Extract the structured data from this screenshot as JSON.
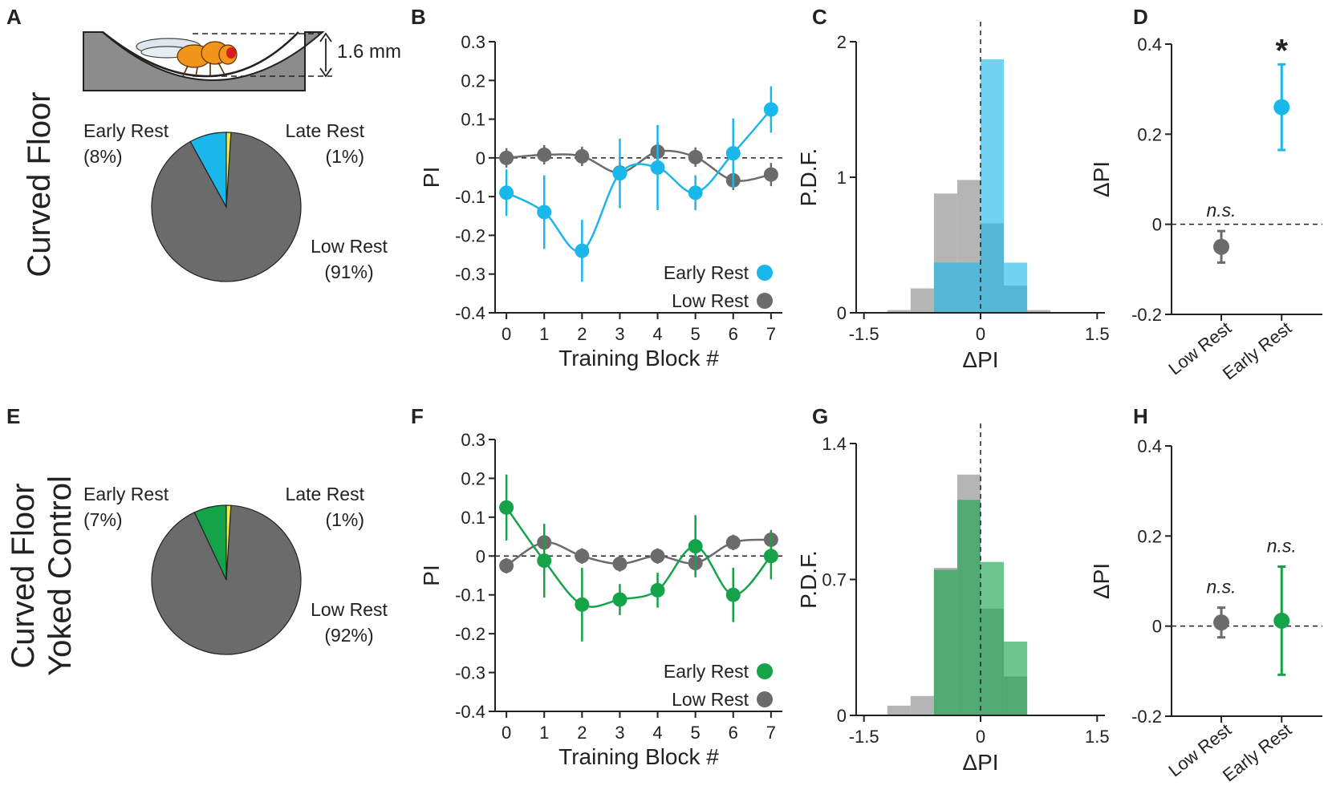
{
  "colors": {
    "early_curved": "#1ab7ea",
    "early_yoked": "#15a34a",
    "low": "#6b6b6b",
    "late": "#f2ec3a",
    "gray_hist": "#b5b5b5",
    "fly_body": "#f2951b"
  },
  "row_labels": {
    "top": [
      "Curved Floor"
    ],
    "bottom": [
      "Curved Floor",
      "Yoked Control"
    ]
  },
  "panel_letters": [
    "A",
    "B",
    "C",
    "D",
    "E",
    "F",
    "G",
    "H"
  ],
  "schematic": {
    "depth_label": "1.6 mm"
  },
  "chart_data": [
    {
      "panel": "A",
      "type": "pie",
      "title": "Curved Floor",
      "slices": [
        {
          "name": "Early Rest",
          "pct_label": "(8%)",
          "value": 8,
          "color": "early_curved"
        },
        {
          "name": "Late Rest",
          "pct_label": "(1%)",
          "value": 1,
          "color": "late"
        },
        {
          "name": "Low Rest",
          "pct_label": "(91%)",
          "value": 91,
          "color": "low"
        }
      ]
    },
    {
      "panel": "B",
      "type": "line",
      "xlabel": "Training Block #",
      "ylabel": "PI",
      "xlim": [
        -0.3,
        7.3
      ],
      "ylim": [
        -0.4,
        0.3
      ],
      "x_ticks": [
        "0",
        "1",
        "2",
        "3",
        "4",
        "5",
        "6",
        "7"
      ],
      "y_ticks": [
        "0.3",
        "0.2",
        "0.1",
        "0",
        "-0.1",
        "-0.2",
        "-0.3",
        "-0.4"
      ],
      "zero_line": true,
      "series": [
        {
          "name": "Early Rest",
          "color": "early_curved",
          "x": [
            0,
            1,
            2,
            3,
            4,
            5,
            6,
            7
          ],
          "values": [
            -0.09,
            -0.14,
            -0.24,
            -0.04,
            -0.025,
            -0.09,
            0.012,
            0.125
          ],
          "err": [
            0.06,
            0.095,
            0.08,
            0.09,
            0.11,
            0.045,
            0.09,
            0.06
          ]
        },
        {
          "name": "Low Rest",
          "color": "low",
          "x": [
            0,
            1,
            2,
            3,
            4,
            5,
            6,
            7
          ],
          "values": [
            0.0,
            0.008,
            0.004,
            -0.038,
            0.016,
            0.002,
            -0.058,
            -0.043
          ],
          "err": [
            0.025,
            0.025,
            0.025,
            0.025,
            0.025,
            0.025,
            0.025,
            0.03
          ]
        }
      ]
    },
    {
      "panel": "C",
      "type": "bar",
      "subtype": "histogram",
      "xlabel": "ΔPI",
      "ylabel": "P.D.F.",
      "xlim": [
        -1.6,
        1.6
      ],
      "ylim": [
        0,
        2
      ],
      "x_ticks": [
        "-1.5",
        "0",
        "1.5"
      ],
      "y_ticks": [
        "2",
        "1",
        "0"
      ],
      "bin_edges": [
        -1.2,
        -0.9,
        -0.6,
        -0.3,
        0.0,
        0.3,
        0.6,
        0.9,
        1.2
      ],
      "series": [
        {
          "name": "Low Rest",
          "color": "gray_hist",
          "values": [
            0.02,
            0.18,
            0.88,
            0.98,
            0.66,
            0.2,
            0.02,
            0
          ]
        },
        {
          "name": "Early Rest",
          "color": "early_curved",
          "values": [
            0,
            0,
            0.37,
            0.37,
            1.87,
            0.37,
            0,
            0
          ]
        }
      ]
    },
    {
      "panel": "D",
      "type": "scatter",
      "ylabel": "ΔPI",
      "ylim": [
        -0.2,
        0.4
      ],
      "y_ticks": [
        "0.4",
        "0.2",
        "0",
        "-0.2"
      ],
      "categories": [
        "Low Rest",
        "Early Rest"
      ],
      "values": [
        -0.05,
        0.26
      ],
      "err": [
        0.035,
        0.095
      ],
      "point_colors": [
        "low",
        "early_curved"
      ],
      "annotations": [
        "n.s.",
        "*"
      ]
    },
    {
      "panel": "E",
      "type": "pie",
      "title": "Curved Floor Yoked Control",
      "slices": [
        {
          "name": "Early Rest",
          "pct_label": "(7%)",
          "value": 7,
          "color": "early_yoked"
        },
        {
          "name": "Late Rest",
          "pct_label": "(1%)",
          "value": 1,
          "color": "late"
        },
        {
          "name": "Low Rest",
          "pct_label": "(92%)",
          "value": 92,
          "color": "low"
        }
      ]
    },
    {
      "panel": "F",
      "type": "line",
      "xlabel": "Training Block #",
      "ylabel": "PI",
      "xlim": [
        -0.3,
        7.3
      ],
      "ylim": [
        -0.4,
        0.3
      ],
      "x_ticks": [
        "0",
        "1",
        "2",
        "3",
        "4",
        "5",
        "6",
        "7"
      ],
      "y_ticks": [
        "0.3",
        "0.2",
        "0.1",
        "0",
        "-0.1",
        "-0.2",
        "-0.3",
        "-0.4"
      ],
      "zero_line": true,
      "series": [
        {
          "name": "Early Rest",
          "color": "early_yoked",
          "x": [
            0,
            1,
            2,
            3,
            4,
            5,
            6,
            7
          ],
          "values": [
            0.125,
            -0.012,
            -0.125,
            -0.112,
            -0.088,
            0.025,
            -0.1,
            0.0
          ],
          "err": [
            0.085,
            0.095,
            0.095,
            0.04,
            0.045,
            0.08,
            0.07,
            0.06
          ]
        },
        {
          "name": "Low Rest",
          "color": "low",
          "x": [
            0,
            1,
            2,
            3,
            4,
            5,
            6,
            7
          ],
          "values": [
            -0.025,
            0.035,
            0.0,
            -0.02,
            0.0,
            -0.018,
            0.035,
            0.042
          ],
          "err": [
            0.02,
            0.02,
            0.02,
            0.02,
            0.02,
            0.02,
            0.02,
            0.025
          ]
        }
      ]
    },
    {
      "panel": "G",
      "type": "bar",
      "subtype": "histogram",
      "xlabel": "ΔPI",
      "ylabel": "P.D.F.",
      "xlim": [
        -1.6,
        1.6
      ],
      "ylim": [
        0,
        1.4
      ],
      "x_ticks": [
        "-1.5",
        "0",
        "1.5"
      ],
      "y_ticks": [
        "1.4",
        "0.7",
        "0"
      ],
      "bin_edges": [
        -1.2,
        -0.9,
        -0.6,
        -0.3,
        0.0,
        0.3,
        0.6,
        0.9,
        1.2
      ],
      "series": [
        {
          "name": "Low Rest",
          "color": "gray_hist",
          "values": [
            0.05,
            0.1,
            0.76,
            1.24,
            0.55,
            0.2,
            0,
            0
          ]
        },
        {
          "name": "Early Rest",
          "color": "early_yoked",
          "values": [
            0,
            0,
            0.75,
            1.11,
            0.79,
            0.38,
            0,
            0
          ]
        }
      ]
    },
    {
      "panel": "H",
      "type": "scatter",
      "ylabel": "ΔPI",
      "ylim": [
        -0.2,
        0.4
      ],
      "y_ticks": [
        "0.4",
        "0.2",
        "0",
        "-0.2"
      ],
      "categories": [
        "Low Rest",
        "Early Rest"
      ],
      "values": [
        0.008,
        0.012
      ],
      "err": [
        0.033,
        0.12
      ],
      "point_colors": [
        "low",
        "early_yoked"
      ],
      "annotations": [
        "n.s.",
        "n.s."
      ]
    }
  ]
}
